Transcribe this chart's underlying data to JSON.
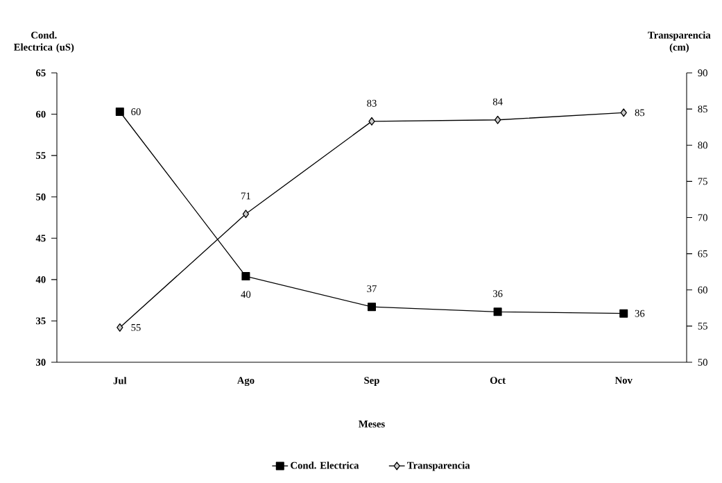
{
  "chart_data": {
    "type": "line",
    "xlabel": "Meses",
    "ylabel": "Cond. Electrica (uS)",
    "y2label": "Transparencia (cm)",
    "categories": [
      "Jul",
      "Ago",
      "Sep",
      "Oct",
      "Nov"
    ],
    "series": [
      {
        "name": "Cond. Electrica",
        "color": "#000000",
        "marker": "square",
        "values": [
          60.3,
          40.4,
          36.7,
          36.1,
          35.9
        ],
        "value_labels": [
          "60",
          "40",
          "37",
          "36",
          "36"
        ]
      },
      {
        "name": "Transparencia",
        "color": "#000000",
        "marker": "diamond",
        "axis": "y2",
        "values": [
          54.8,
          70.5,
          83.3,
          83.5,
          84.5
        ],
        "value_labels": [
          "55",
          "71",
          "83",
          "84",
          "85"
        ]
      }
    ],
    "ylim": [
      30,
      65
    ],
    "yticks": [
      30,
      35,
      40,
      45,
      50,
      55,
      60,
      65
    ],
    "y2lim": [
      50,
      90
    ],
    "y2ticks": [
      50,
      55,
      60,
      65,
      70,
      75,
      80,
      85,
      90
    ],
    "grid": false,
    "legend": "bottom"
  }
}
